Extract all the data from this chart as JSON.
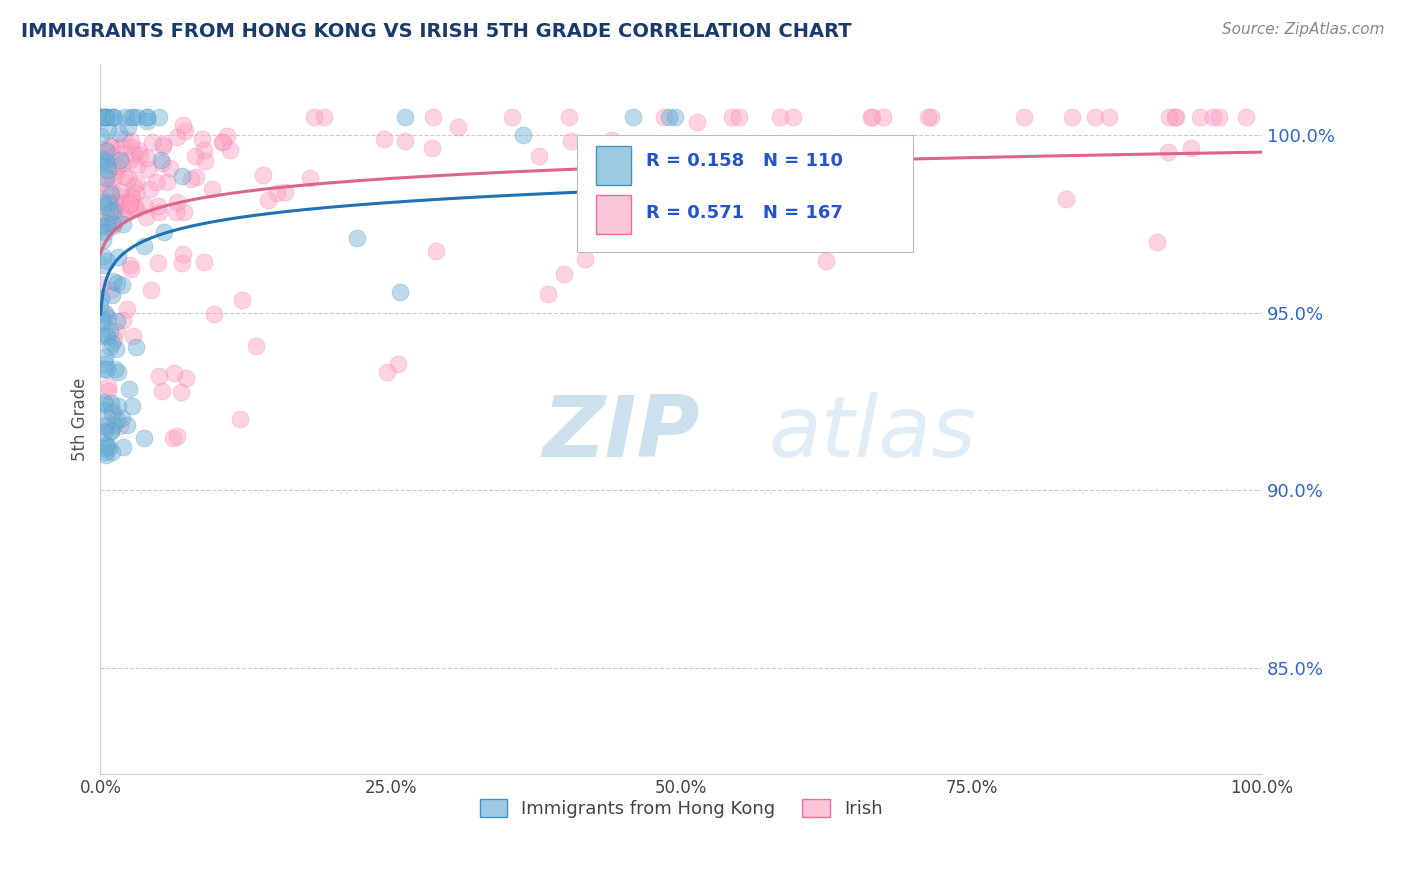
{
  "title": "IMMIGRANTS FROM HONG KONG VS IRISH 5TH GRADE CORRELATION CHART",
  "source": "Source: ZipAtlas.com",
  "ylabel": "5th Grade",
  "legend_label1": "Immigrants from Hong Kong",
  "legend_label2": "Irish",
  "R1": 0.158,
  "N1": 110,
  "R2": 0.571,
  "N2": 167,
  "color_blue": "#6baed6",
  "color_blue_edge": "#4292c6",
  "color_blue_line": "#2171b5",
  "color_pink": "#fc9fbf",
  "color_pink_edge": "#f768a1",
  "color_pink_line": "#dd6688",
  "color_blue_fill": "#9ecae1",
  "color_pink_fill": "#fcc5d8",
  "ytick_labels": [
    "85.0%",
    "90.0%",
    "95.0%",
    "100.0%"
  ],
  "ytick_values": [
    0.85,
    0.9,
    0.95,
    1.0
  ],
  "xlim": [
    0.0,
    1.0
  ],
  "ylim": [
    0.82,
    1.02
  ],
  "background_color": "#ffffff",
  "watermark_zip": "ZIP",
  "watermark_atlas": "atlas",
  "watermark_color_zip": "#b8d4e8",
  "watermark_color_atlas": "#c8dff0",
  "title_color": "#1a3a6b",
  "source_color": "#888888",
  "axis_color": "#cccccc",
  "grid_color": "#cccccc",
  "tick_color": "#3366cc",
  "xtick_labels": [
    "0.0%",
    "25.0%",
    "50.0%",
    "75.0%",
    "100.0%"
  ],
  "xtick_values": [
    0.0,
    0.25,
    0.5,
    0.75,
    1.0
  ]
}
